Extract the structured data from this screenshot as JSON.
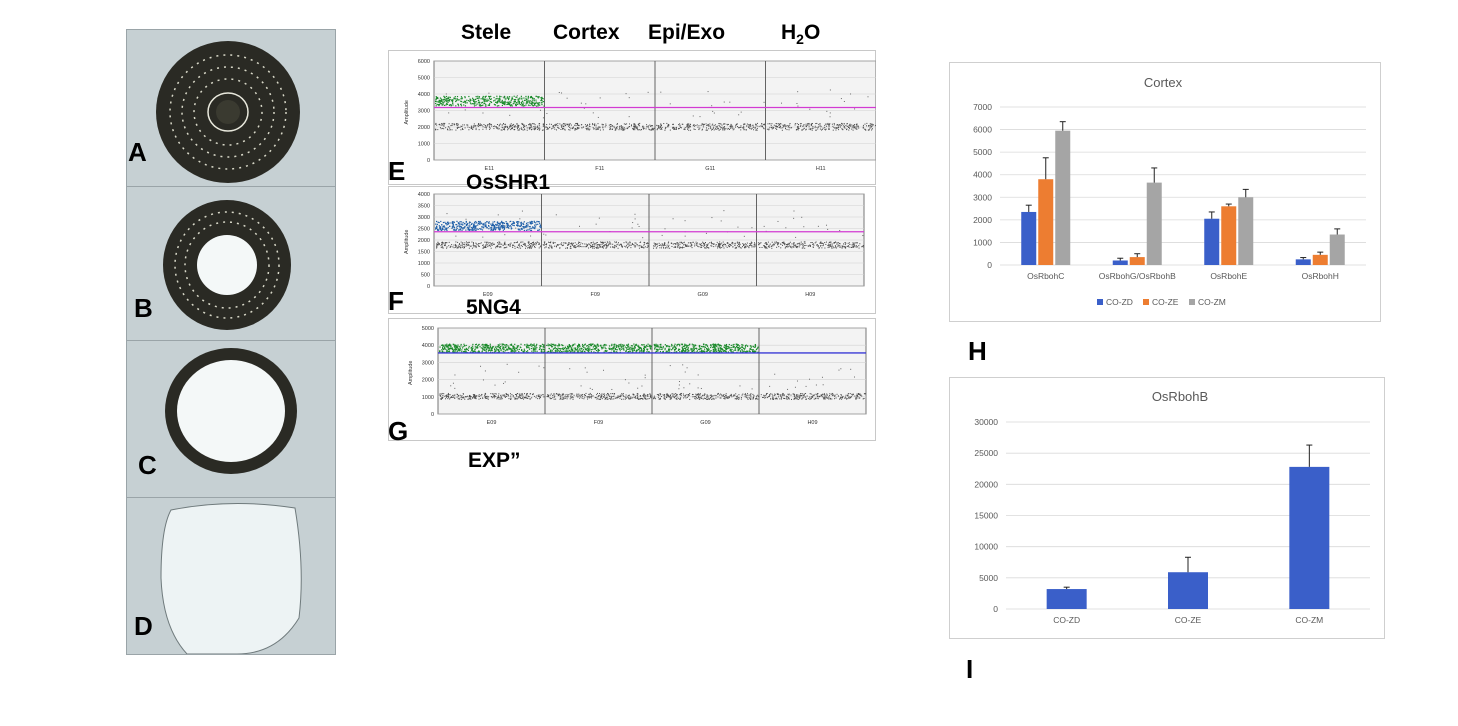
{
  "section_images": {
    "labels": [
      "A",
      "B",
      "C",
      "D"
    ]
  },
  "ddpcr": {
    "column_headers": {
      "stele": "Stele",
      "cortex": "Cortex",
      "epi_exo": "Epi/Exo",
      "water_base": "H",
      "water_sub": "2",
      "water_end": "O"
    },
    "amplitude_label": "Amplitude",
    "panels": [
      {
        "letter": "E",
        "gene": "OsSHR1",
        "yticks": [
          "6000",
          "5000",
          "4000",
          "3000",
          "2000",
          "1000",
          "0"
        ],
        "wells": [
          "E11",
          "F11",
          "G11",
          "H11"
        ],
        "threshold_color": "#d23bd2",
        "positive_color": "#1a8a2a",
        "positive_lanes": [
          "Stele"
        ]
      },
      {
        "letter": "F",
        "gene": "5NG4",
        "yticks": [
          "4000",
          "3500",
          "3000",
          "2500",
          "2000",
          "1500",
          "1000",
          "500",
          "0"
        ],
        "wells": [
          "E09",
          "F09",
          "G09",
          "H09"
        ],
        "threshold_color": "#d23bd2",
        "positive_color": "#1f5fa8",
        "positive_lanes": [
          "Stele"
        ]
      },
      {
        "letter": "G",
        "gene": "EXP”",
        "yticks": [
          "5000",
          "4000",
          "3000",
          "2000",
          "1000",
          "0"
        ],
        "wells": [
          "E09",
          "F09",
          "G09",
          "H09"
        ],
        "threshold_color": "#3a3ad6",
        "positive_color": "#1a8a2a",
        "positive_lanes": [
          "Stele",
          "Cortex",
          "Epi/Exo"
        ]
      }
    ]
  },
  "chart_data": [
    {
      "type": "bar",
      "panel_letter": "H",
      "title": "Cortex",
      "categories": [
        "OsRbohC",
        "OsRbohG/OsRbohB",
        "OsRbohE",
        "OsRbohH"
      ],
      "series": [
        {
          "name": "CO-ZD",
          "color": "#3a5fc9",
          "values": [
            2350,
            200,
            2050,
            250
          ],
          "errors": [
            300,
            100,
            300,
            80
          ]
        },
        {
          "name": "CO-ZE",
          "color": "#ed7d31",
          "values": [
            3800,
            350,
            2600,
            450
          ],
          "errors": [
            950,
            150,
            100,
            120
          ]
        },
        {
          "name": "CO-ZM",
          "color": "#a5a5a5",
          "values": [
            5950,
            3650,
            3000,
            1350
          ],
          "errors": [
            400,
            650,
            350,
            250
          ]
        }
      ],
      "ylim": [
        0,
        7000
      ],
      "yticks": [
        "0",
        "1000",
        "2000",
        "3000",
        "4000",
        "5000",
        "6000",
        "7000"
      ],
      "grid": true,
      "legend": "bottom"
    },
    {
      "type": "bar",
      "panel_letter": "I",
      "title": "OsRbohB",
      "categories": [
        "CO-ZD",
        "CO-ZE",
        "CO-ZM"
      ],
      "series": [
        {
          "color": "#3a5fc9",
          "values": [
            3200,
            5900,
            22800
          ],
          "errors": [
            300,
            2400,
            3500
          ]
        }
      ],
      "ylim": [
        0,
        30000
      ],
      "yticks": [
        "0",
        "5000",
        "10000",
        "15000",
        "20000",
        "25000",
        "30000"
      ],
      "grid": true,
      "legend": "none"
    }
  ]
}
